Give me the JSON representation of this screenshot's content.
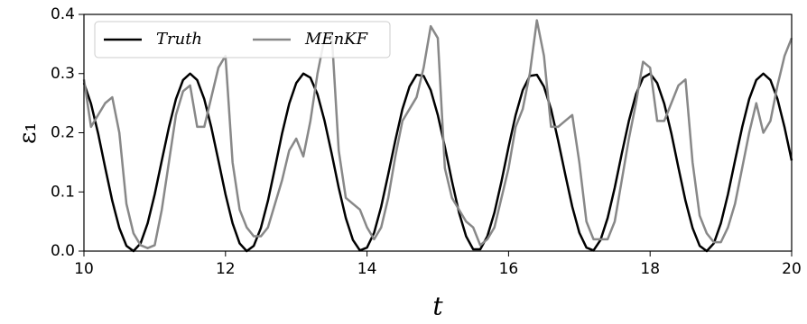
{
  "chart_data": {
    "type": "line",
    "xlabel": "t",
    "ylabel": "ε₁",
    "x": [
      10.0,
      10.1,
      10.2,
      10.3,
      10.4,
      10.5,
      10.6,
      10.7,
      10.8,
      10.9,
      11.0,
      11.1,
      11.2,
      11.3,
      11.4,
      11.5,
      11.6,
      11.7,
      11.8,
      11.9,
      12.0,
      12.1,
      12.2,
      12.3,
      12.4,
      12.5,
      12.6,
      12.7,
      12.8,
      12.9,
      13.0,
      13.1,
      13.2,
      13.3,
      13.4,
      13.5,
      13.6,
      13.7,
      13.8,
      13.9,
      14.0,
      14.1,
      14.2,
      14.3,
      14.4,
      14.5,
      14.6,
      14.7,
      14.8,
      14.9,
      15.0,
      15.1,
      15.2,
      15.3,
      15.4,
      15.5,
      15.6,
      15.7,
      15.8,
      15.9,
      16.0,
      16.1,
      16.2,
      16.3,
      16.4,
      16.5,
      16.6,
      16.7,
      16.8,
      16.9,
      17.0,
      17.1,
      17.2,
      17.3,
      17.4,
      17.5,
      17.6,
      17.7,
      17.8,
      17.9,
      18.0,
      18.1,
      18.2,
      18.3,
      18.4,
      18.5,
      18.6,
      18.7,
      18.8,
      18.9,
      19.0,
      19.1,
      19.2,
      19.3,
      19.4,
      19.5,
      19.6,
      19.7,
      19.8,
      19.9,
      20.0
    ],
    "series": [
      {
        "name": "Truth",
        "color": "#000000",
        "values": [
          0.284,
          0.249,
          0.199,
          0.141,
          0.085,
          0.039,
          0.009,
          0.0,
          0.013,
          0.047,
          0.096,
          0.153,
          0.209,
          0.257,
          0.289,
          0.3,
          0.289,
          0.257,
          0.209,
          0.153,
          0.096,
          0.047,
          0.013,
          0.0,
          0.009,
          0.039,
          0.085,
          0.141,
          0.199,
          0.249,
          0.284,
          0.3,
          0.293,
          0.265,
          0.22,
          0.165,
          0.107,
          0.056,
          0.019,
          0.001,
          0.006,
          0.031,
          0.075,
          0.13,
          0.187,
          0.24,
          0.278,
          0.298,
          0.296,
          0.272,
          0.23,
          0.176,
          0.118,
          0.065,
          0.025,
          0.003,
          0.003,
          0.025,
          0.065,
          0.118,
          0.176,
          0.23,
          0.272,
          0.296,
          0.298,
          0.278,
          0.24,
          0.187,
          0.13,
          0.075,
          0.031,
          0.006,
          0.001,
          0.019,
          0.056,
          0.107,
          0.165,
          0.22,
          0.265,
          0.293,
          0.3,
          0.284,
          0.249,
          0.199,
          0.141,
          0.085,
          0.039,
          0.009,
          0.0,
          0.013,
          0.047,
          0.096,
          0.153,
          0.209,
          0.257,
          0.289,
          0.3,
          0.289,
          0.257,
          0.209,
          0.153
        ]
      },
      {
        "name": "MEnKF",
        "color": "#888888",
        "values": [
          0.29,
          0.21,
          0.23,
          0.25,
          0.26,
          0.2,
          0.08,
          0.03,
          0.01,
          0.005,
          0.01,
          0.07,
          0.15,
          0.23,
          0.27,
          0.28,
          0.21,
          0.21,
          0.26,
          0.31,
          0.33,
          0.15,
          0.07,
          0.04,
          0.025,
          0.025,
          0.04,
          0.08,
          0.12,
          0.17,
          0.19,
          0.16,
          0.22,
          0.3,
          0.36,
          0.37,
          0.17,
          0.09,
          0.08,
          0.07,
          0.04,
          0.02,
          0.04,
          0.09,
          0.16,
          0.22,
          0.24,
          0.26,
          0.31,
          0.38,
          0.36,
          0.14,
          0.09,
          0.07,
          0.05,
          0.04,
          0.01,
          0.02,
          0.04,
          0.09,
          0.14,
          0.21,
          0.24,
          0.3,
          0.39,
          0.33,
          0.21,
          0.21,
          0.22,
          0.23,
          0.15,
          0.05,
          0.02,
          0.02,
          0.02,
          0.05,
          0.12,
          0.19,
          0.25,
          0.32,
          0.31,
          0.22,
          0.22,
          0.25,
          0.28,
          0.29,
          0.15,
          0.06,
          0.03,
          0.015,
          0.015,
          0.04,
          0.08,
          0.14,
          0.2,
          0.25,
          0.2,
          0.22,
          0.28,
          0.33,
          0.36
        ]
      }
    ],
    "xlim": [
      10,
      20
    ],
    "xticks": [
      10,
      12,
      14,
      16,
      18,
      20
    ],
    "ylim": [
      0,
      0.4
    ],
    "yticks": [
      {
        "value": 0,
        "label": "0.0"
      },
      0.1,
      0.2,
      0.3,
      0.4
    ],
    "legend": "upper left"
  }
}
